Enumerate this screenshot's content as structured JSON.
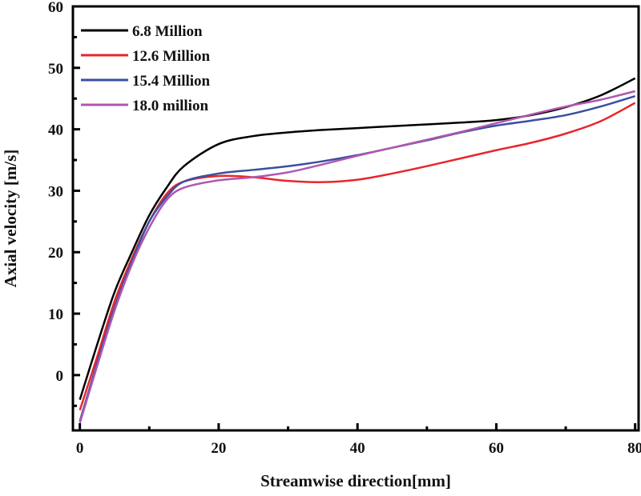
{
  "chart_data": {
    "type": "line",
    "title": "",
    "xlabel": "Streamwise direction[mm]",
    "ylabel": "Axial velocity [m/s]",
    "xlim": [
      -1,
      80.5
    ],
    "ylim": [
      -9,
      60
    ],
    "xticks": [
      0,
      20,
      40,
      60,
      80
    ],
    "yticks": [
      0,
      10,
      20,
      30,
      40,
      50,
      60
    ],
    "grid": false,
    "legend_position": "top-left",
    "x": [
      0,
      2.5,
      5,
      7.5,
      10,
      12.5,
      15,
      20,
      25,
      30,
      35,
      40,
      45,
      50,
      55,
      60,
      65,
      70,
      75,
      80
    ],
    "series": [
      {
        "name": "6.8 Million",
        "color": "#000000",
        "values": [
          -4,
          5,
          13.5,
          20,
          26,
          30.5,
          34,
          37.6,
          38.9,
          39.5,
          39.9,
          40.2,
          40.5,
          40.8,
          41.1,
          41.5,
          42.3,
          43.6,
          45.5,
          48.3
        ]
      },
      {
        "name": "12.6 Million",
        "color": "#e8262b",
        "values": [
          -5.7,
          3,
          12,
          19,
          25,
          29.5,
          31.5,
          32.4,
          32.2,
          31.6,
          31.4,
          31.8,
          32.8,
          34,
          35.3,
          36.6,
          37.8,
          39.3,
          41.3,
          44.3
        ]
      },
      {
        "name": "15.4 Million",
        "color": "#3a4fa0",
        "values": [
          -7.5,
          2,
          11,
          18.5,
          25,
          29,
          31.5,
          32.8,
          33.4,
          34,
          34.8,
          35.8,
          37,
          38.2,
          39.5,
          40.6,
          41.4,
          42.3,
          43.7,
          45.4
        ]
      },
      {
        "name": "18.0 million",
        "color": "#b057b0",
        "values": [
          -7.8,
          1.5,
          10.5,
          18,
          24,
          28.5,
          30.5,
          31.7,
          32.2,
          33,
          34.3,
          35.7,
          37,
          38.3,
          39.6,
          41,
          42.4,
          43.7,
          44.8,
          46.2
        ]
      }
    ]
  }
}
